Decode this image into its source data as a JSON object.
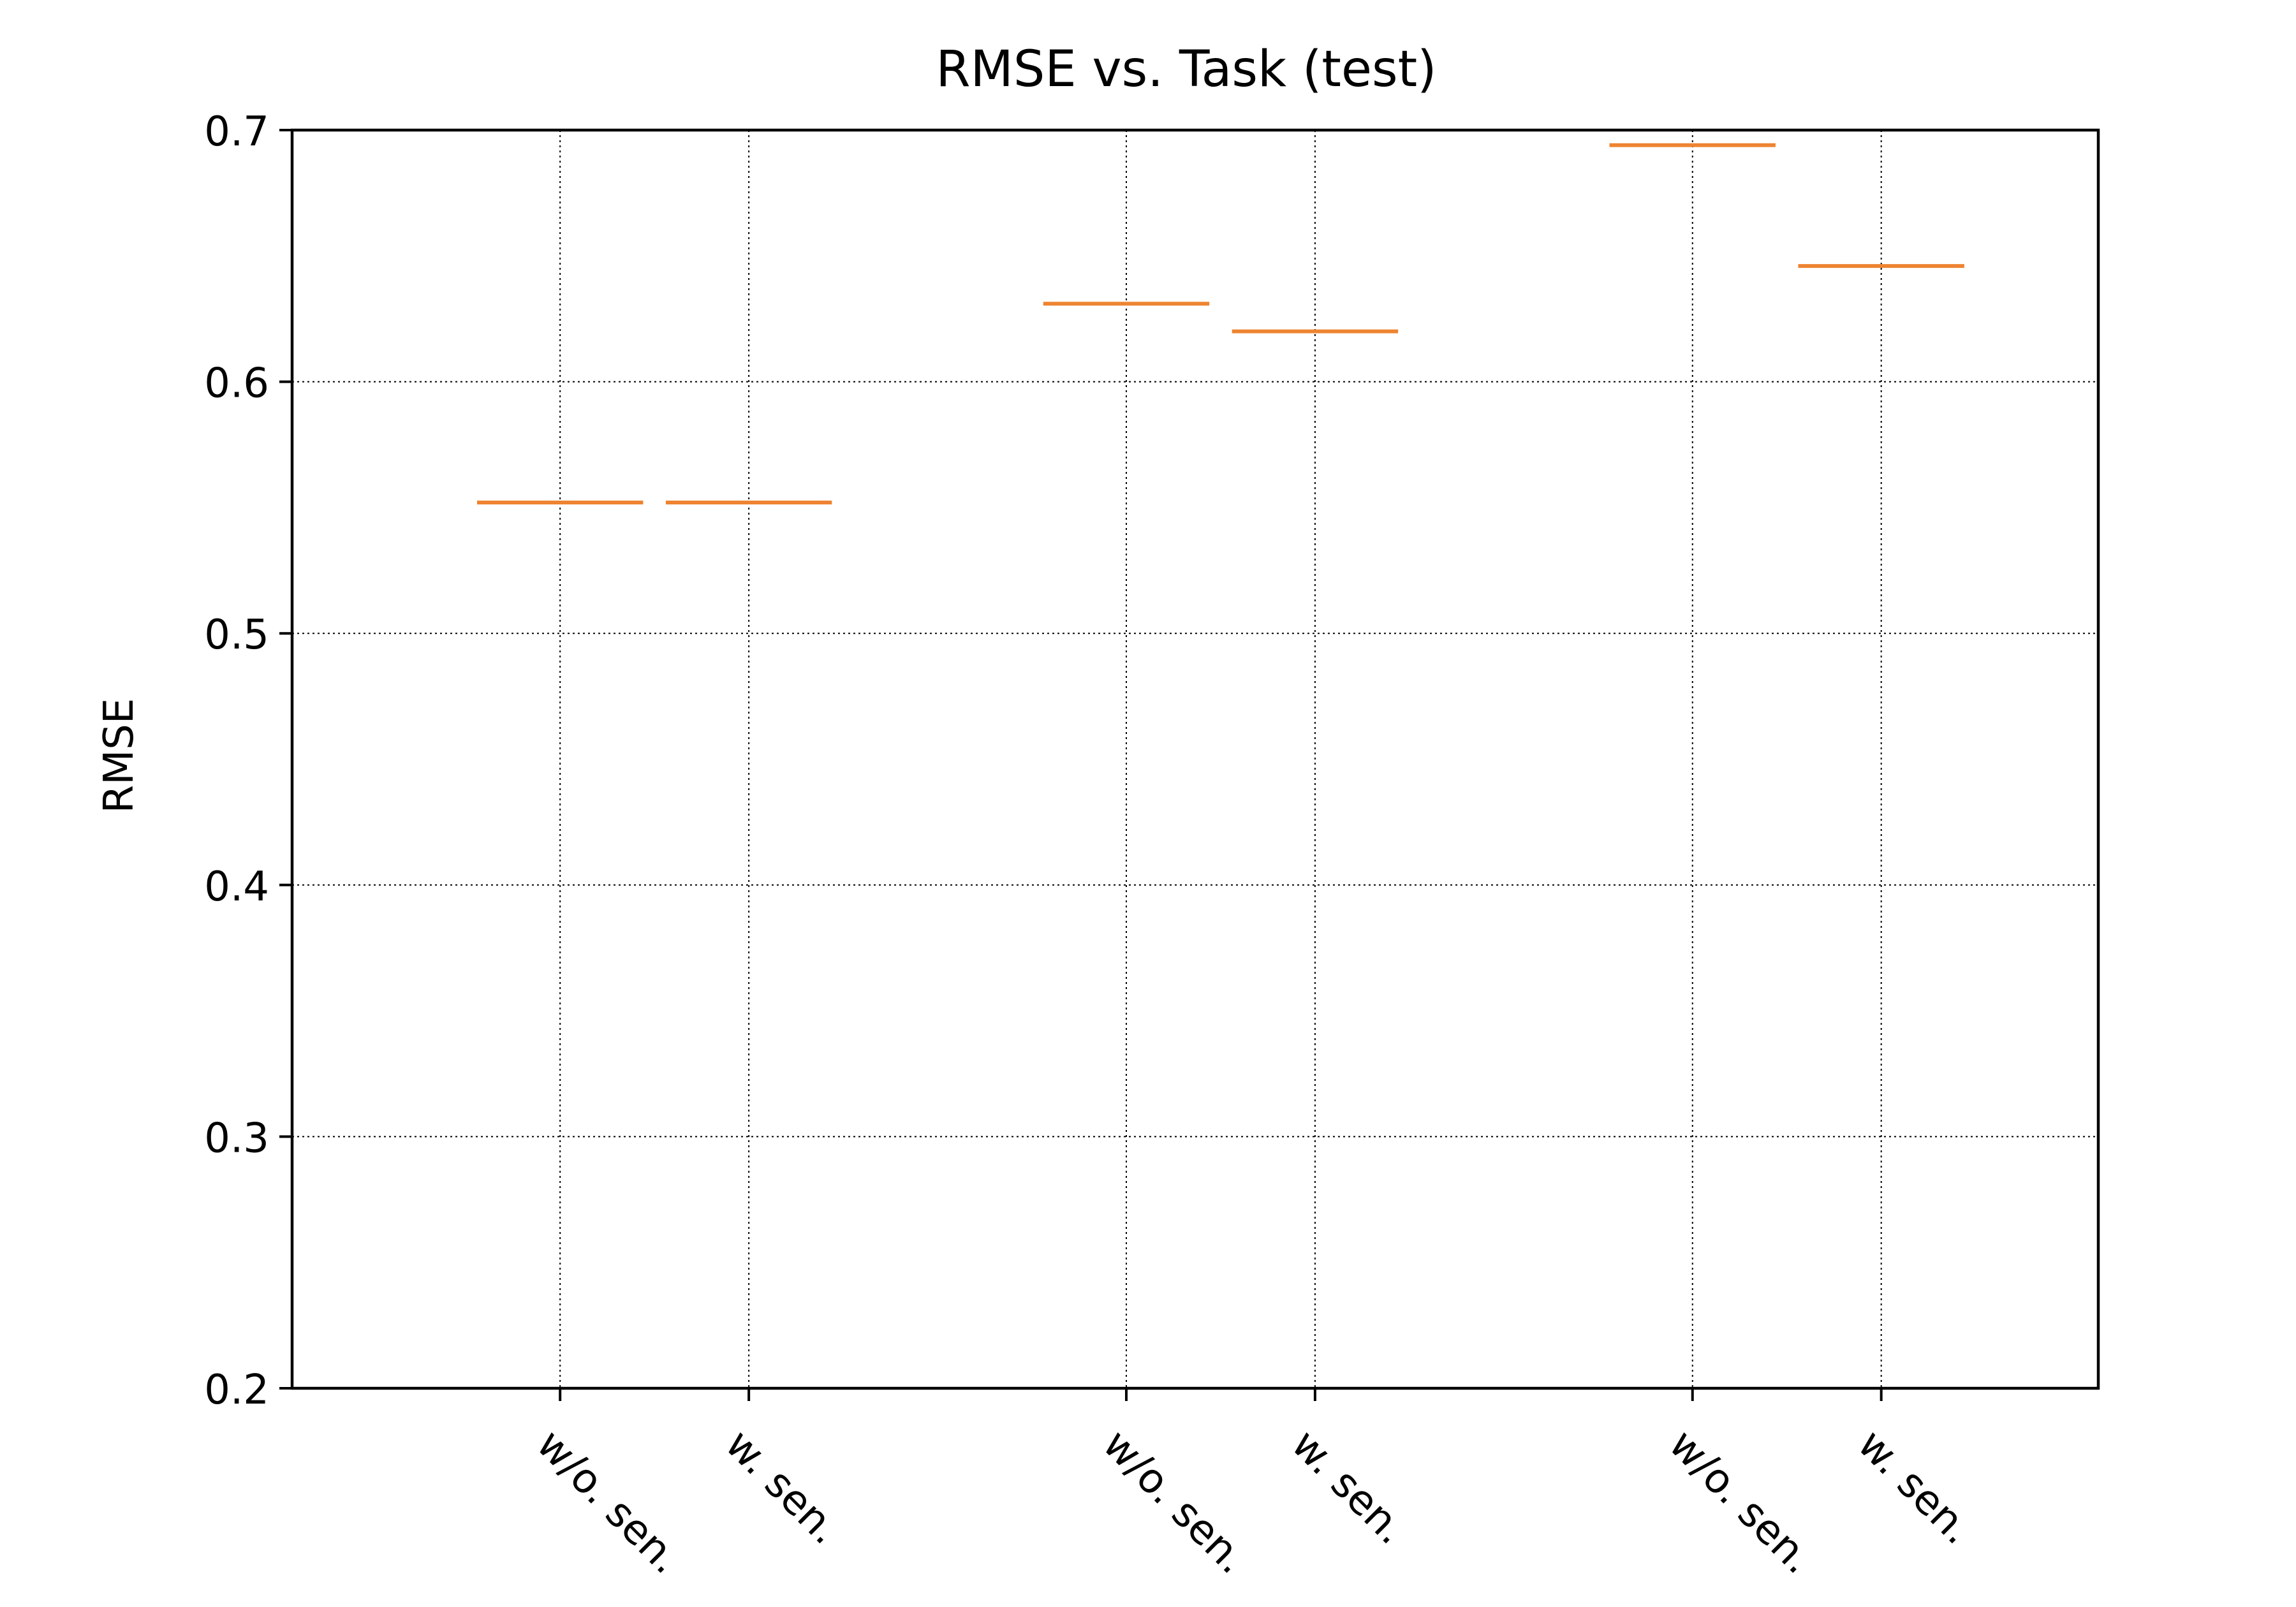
{
  "chart_data": {
    "type": "box",
    "title": "RMSE vs. Task (test)",
    "xlabel": "",
    "ylabel": "RMSE",
    "ylim": [
      0.2,
      0.7
    ],
    "yticks": [
      0.2,
      0.3,
      0.4,
      0.5,
      0.6,
      0.7
    ],
    "ytick_labels": [
      "0.2",
      "0.3",
      "0.4",
      "0.5",
      "0.6",
      "0.7"
    ],
    "grid": true,
    "categories": [
      "w/o. sen.",
      "w. sen.",
      "w/o. sen.",
      "w. sen.",
      "w/o. sen.",
      "w. sen."
    ],
    "positions": [
      1,
      2,
      4,
      5,
      7,
      8
    ],
    "xlim": [
      -0.42,
      9.15
    ],
    "values": [
      0.552,
      0.552,
      0.631,
      0.62,
      0.694,
      0.646
    ],
    "colors": {
      "median": "#ee8431",
      "grid": "#000000",
      "axes": "#000000"
    }
  }
}
